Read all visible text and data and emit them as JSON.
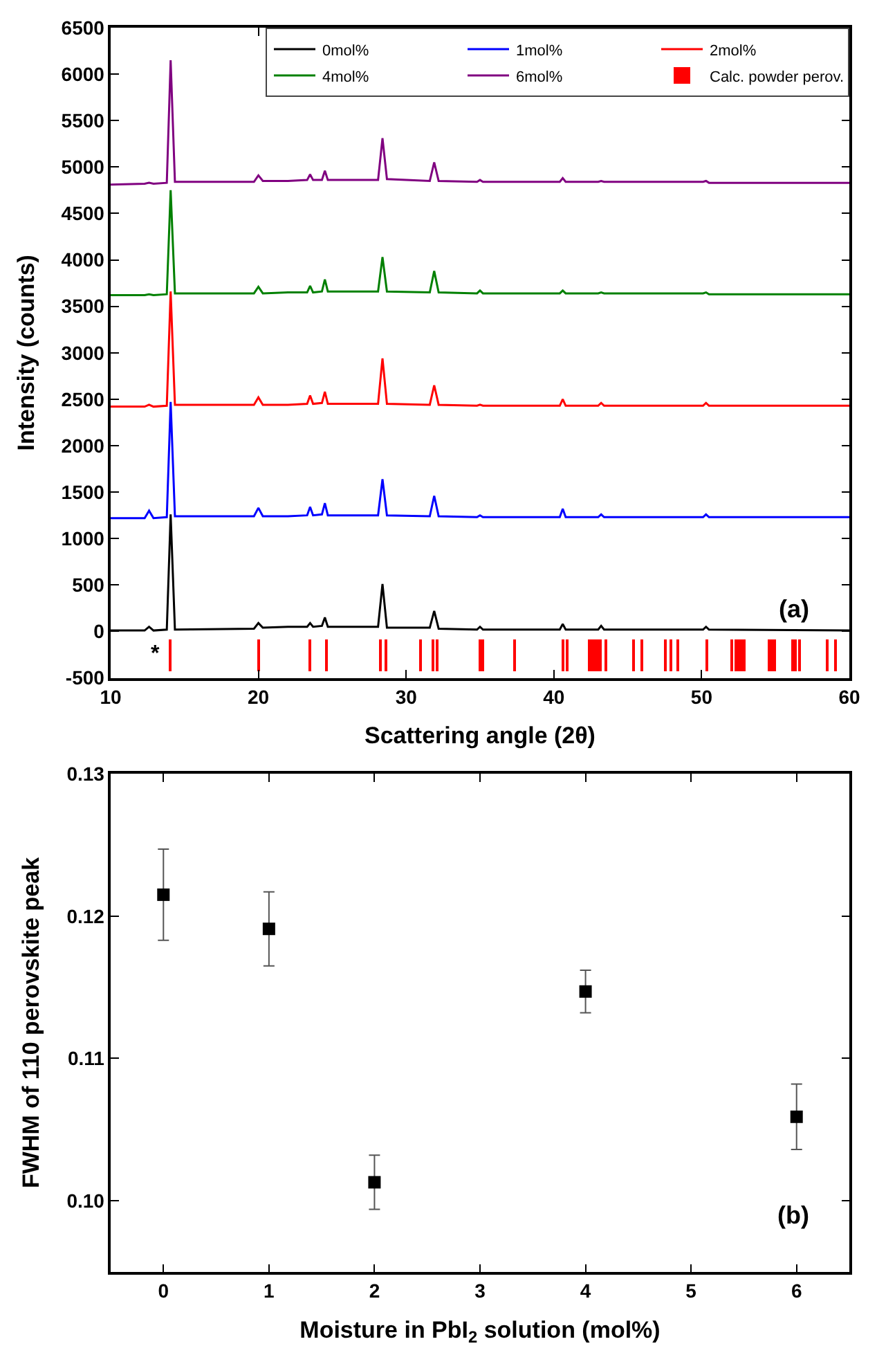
{
  "chart_data": [
    {
      "type": "line",
      "xlabel": "Scattering angle (2θ)",
      "ylabel": "Intensity (counts)",
      "xlim": [
        10,
        60
      ],
      "xticks": [
        10,
        20,
        30,
        40,
        50,
        60
      ],
      "ylim": [
        -500,
        6500
      ],
      "yticks": [
        -500,
        0,
        500,
        1000,
        1500,
        2000,
        2500,
        3000,
        3500,
        4000,
        4500,
        5000,
        5500,
        6000,
        6500
      ],
      "legend": "top right",
      "x": [
        10,
        12.3,
        12.6,
        12.9,
        13.8,
        14.06,
        14.35,
        19.7,
        20.0,
        20.3,
        22.0,
        23.3,
        23.5,
        23.7,
        24.3,
        24.5,
        24.7,
        28.1,
        28.4,
        28.7,
        31.6,
        31.9,
        32.2,
        34.8,
        35.0,
        35.2,
        40.4,
        40.6,
        40.8,
        43.0,
        43.2,
        43.4,
        50.1,
        50.3,
        50.5,
        60
      ],
      "series": [
        {
          "name": "0mol%",
          "color": "#000000",
          "values": [
            10,
            10,
            50,
            10,
            20,
            1260,
            20,
            30,
            90,
            40,
            50,
            50,
            90,
            50,
            60,
            150,
            50,
            50,
            510,
            40,
            40,
            220,
            30,
            20,
            50,
            20,
            20,
            80,
            20,
            20,
            60,
            20,
            20,
            50,
            20,
            10
          ]
        },
        {
          "name": "1mol%",
          "color": "#0000ff",
          "values": [
            1220,
            1220,
            1300,
            1220,
            1230,
            2470,
            1240,
            1240,
            1330,
            1240,
            1240,
            1250,
            1340,
            1250,
            1260,
            1380,
            1250,
            1250,
            1640,
            1250,
            1240,
            1460,
            1240,
            1230,
            1250,
            1230,
            1230,
            1320,
            1230,
            1230,
            1260,
            1230,
            1230,
            1260,
            1230,
            1230
          ]
        },
        {
          "name": "2mol%",
          "color": "#ff0000",
          "values": [
            2420,
            2420,
            2440,
            2420,
            2430,
            3660,
            2440,
            2440,
            2520,
            2440,
            2440,
            2450,
            2540,
            2450,
            2460,
            2580,
            2450,
            2450,
            2940,
            2450,
            2440,
            2650,
            2440,
            2430,
            2440,
            2430,
            2430,
            2500,
            2430,
            2430,
            2460,
            2430,
            2430,
            2460,
            2430,
            2430
          ]
        },
        {
          "name": "4mol%",
          "color": "#008000",
          "values": [
            3620,
            3620,
            3630,
            3620,
            3630,
            4750,
            3640,
            3640,
            3710,
            3640,
            3650,
            3650,
            3720,
            3650,
            3660,
            3790,
            3660,
            3660,
            4030,
            3660,
            3650,
            3880,
            3650,
            3640,
            3670,
            3640,
            3640,
            3670,
            3640,
            3640,
            3650,
            3640,
            3640,
            3650,
            3630,
            3630
          ]
        },
        {
          "name": "6mol%",
          "color": "#800080",
          "values": [
            4810,
            4820,
            4830,
            4820,
            4830,
            6150,
            4840,
            4840,
            4910,
            4850,
            4850,
            4860,
            4920,
            4860,
            4860,
            4960,
            4860,
            4860,
            5310,
            4870,
            4850,
            5050,
            4850,
            4840,
            4860,
            4840,
            4840,
            4880,
            4840,
            4840,
            4850,
            4840,
            4840,
            4850,
            4830,
            4830
          ]
        },
        {
          "name": "Calc. powder perov.",
          "type": "bar",
          "color": "#ff0000",
          "x": [
            14.06,
            20.0,
            23.5,
            24.6,
            28.3,
            28.6,
            31.0,
            31.8,
            32.1,
            35.0,
            35.2,
            37.4,
            40.6,
            40.9,
            42.4,
            42.6,
            42.8,
            43.0,
            43.2,
            43.5,
            45.4,
            46.0,
            47.6,
            47.9,
            48.4,
            50.4,
            52.1,
            52.3,
            52.5,
            52.7,
            52.9,
            54.6,
            54.8,
            55.0,
            56.2,
            56.4,
            56.6,
            58.5,
            59.1
          ],
          "values": [
            350,
            350,
            350,
            350,
            350,
            350,
            350,
            350,
            350,
            350,
            350,
            350,
            350,
            350,
            350,
            350,
            350,
            350,
            350,
            350,
            350,
            350,
            350,
            350,
            350,
            350,
            350,
            350,
            350,
            350,
            350,
            350,
            350,
            350,
            350,
            350,
            350,
            350,
            350
          ],
          "base": [
            -430,
            -430,
            -430,
            -430,
            -430,
            -430,
            -430,
            -430,
            -430,
            -430,
            -430,
            -430,
            -430,
            -430,
            -430,
            -430,
            -430,
            -430,
            -430,
            -430,
            -430,
            -430,
            -430,
            -430,
            -430,
            -430,
            -430,
            -430,
            -430,
            -430,
            -430,
            -430,
            -430,
            -430,
            -430,
            -430,
            -430,
            -430,
            -430
          ]
        }
      ],
      "annotations": [
        "(a)",
        "*"
      ]
    },
    {
      "type": "scatter",
      "xlabel": "Moisture in PbI$_{2}$ solution (mol%)",
      "ylabel": "FWHM of 110 perovskite peak",
      "xlim": [
        -0.5,
        6.5
      ],
      "xticks": [
        0,
        1,
        2,
        3,
        4,
        5,
        6
      ],
      "ylim": [
        0.095,
        0.13
      ],
      "yticks": [
        {
          "value": 0.1,
          "label": "0.10"
        },
        {
          "value": 0.11,
          "label": "0.11"
        },
        {
          "value": 0.12,
          "label": "0.12"
        },
        {
          "value": 0.13,
          "label": "0.13"
        }
      ],
      "marker": "square",
      "color": "#000000",
      "x": [
        0,
        1,
        2,
        4,
        6
      ],
      "values": [
        0.1215,
        0.1191,
        0.1013,
        0.1147,
        0.1059
      ],
      "errors": [
        [
          0.1183,
          0.1247
        ],
        [
          0.1165,
          0.1217
        ],
        [
          0.0994,
          0.1032
        ],
        [
          0.1132,
          0.1162
        ],
        [
          0.1036,
          0.1082
        ]
      ],
      "annotations": [
        "(b)"
      ]
    }
  ]
}
